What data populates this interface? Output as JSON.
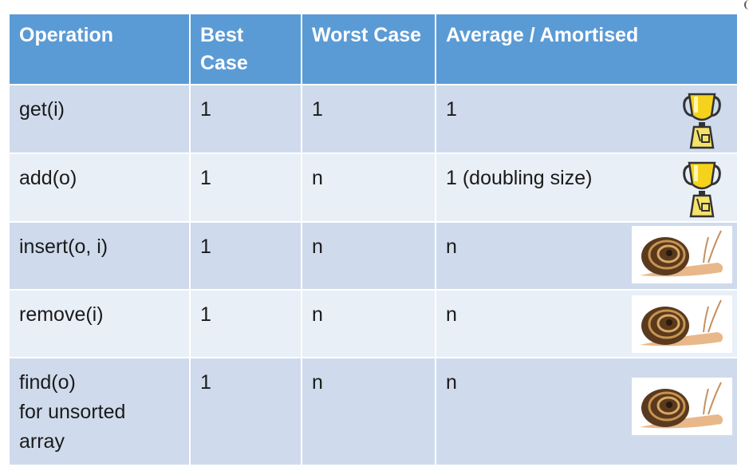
{
  "table": {
    "headers": [
      "Operation",
      "Best Case",
      "Worst Case",
      "Average / Amortised"
    ],
    "rows": [
      {
        "operation": "get(i)",
        "best": "1",
        "worst": "1",
        "average": "1",
        "badge": "trophy-icon"
      },
      {
        "operation": "add(o)",
        "best": "1",
        "worst": "n",
        "average": "1  (doubling size)",
        "badge": "trophy-icon"
      },
      {
        "operation": "insert(o, i)",
        "best": "1",
        "worst": "n",
        "average": "n",
        "badge": "snail-icon"
      },
      {
        "operation": "remove(i)",
        "best": "1",
        "worst": "n",
        "average": "n",
        "badge": "snail-icon"
      },
      {
        "operation": "find(o)\nfor unsorted\narray",
        "best": "1",
        "worst": "n",
        "average": "n",
        "badge": "snail-icon"
      }
    ]
  },
  "colors": {
    "header": "#5b9bd5",
    "row_dark": "#cfdbec",
    "row_light": "#e9eff7"
  }
}
